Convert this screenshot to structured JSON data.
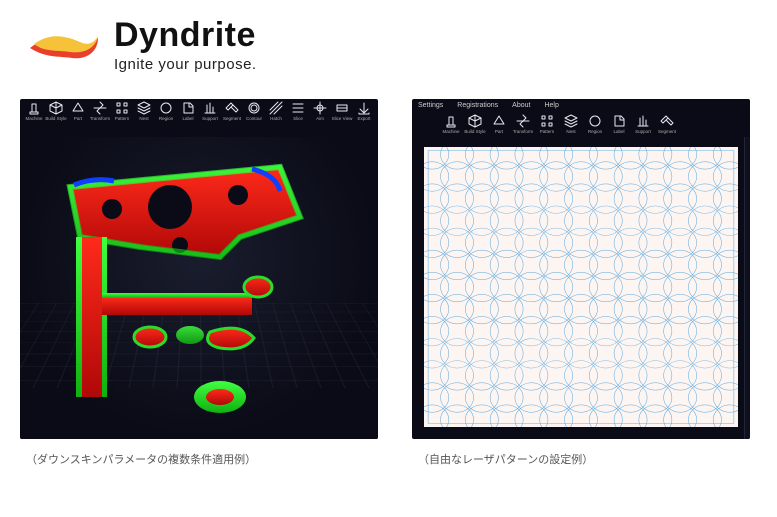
{
  "brand": {
    "wordmark": "Dyndrite",
    "tagline": "Ignite your purpose.",
    "flame_colors": {
      "top": "#f6c23a",
      "bottom": "#e8402a"
    }
  },
  "menubar": {
    "items": [
      "Settings",
      "Registrations",
      "About",
      "Help"
    ]
  },
  "toolbar_left": {
    "items": [
      {
        "id": "machine",
        "label": "Machine"
      },
      {
        "id": "buildstyle",
        "label": "Build Style"
      },
      {
        "id": "part",
        "label": "Part"
      },
      {
        "id": "transform",
        "label": "Transform"
      },
      {
        "id": "pattern",
        "label": "Pattern"
      },
      {
        "id": "nest",
        "label": "Nest"
      },
      {
        "id": "region",
        "label": "Region"
      },
      {
        "id": "label",
        "label": "Label"
      },
      {
        "id": "support",
        "label": "Support"
      },
      {
        "id": "segment",
        "label": "Segment"
      },
      {
        "id": "contour",
        "label": "Contour"
      },
      {
        "id": "hatch",
        "label": "Hatch"
      },
      {
        "id": "slice",
        "label": "Slice"
      },
      {
        "id": "aim",
        "label": "Aim"
      },
      {
        "id": "sliceview",
        "label": "Slice View"
      },
      {
        "id": "export",
        "label": "Export"
      }
    ]
  },
  "toolbar_right": {
    "items": [
      {
        "id": "machine",
        "label": "Machine"
      },
      {
        "id": "buildstyle",
        "label": "Build Style"
      },
      {
        "id": "part",
        "label": "Part"
      },
      {
        "id": "transform",
        "label": "Transform"
      },
      {
        "id": "pattern",
        "label": "Pattern"
      },
      {
        "id": "nest",
        "label": "Nest"
      },
      {
        "id": "region",
        "label": "Region"
      },
      {
        "id": "label",
        "label": "Label"
      },
      {
        "id": "support",
        "label": "Support"
      },
      {
        "id": "segment",
        "label": "Segment"
      }
    ]
  },
  "viewport_3d": {
    "background_radial_inner": "#1a1d2e",
    "background_radial_outer": "#0a0b16",
    "grid_color": "rgba(80,85,110,0.15)",
    "model_colors": {
      "red": "#e8201a",
      "green": "#2add2a",
      "blue": "#1040ff",
      "highlight": "#ff6a2a"
    }
  },
  "viewport_2d": {
    "canvas_bg": "#fdf5f1",
    "stroke": "#5aa8e0",
    "stroke_width": 0.5,
    "grid": {
      "cols": 12,
      "rows": 12,
      "cell": 24,
      "margin": 8,
      "circle_r": 16
    }
  },
  "captions": {
    "left": "（ダウンスキンパラメータの複数条件適用例）",
    "right": "（自由なレーザパターンの設定例）"
  }
}
